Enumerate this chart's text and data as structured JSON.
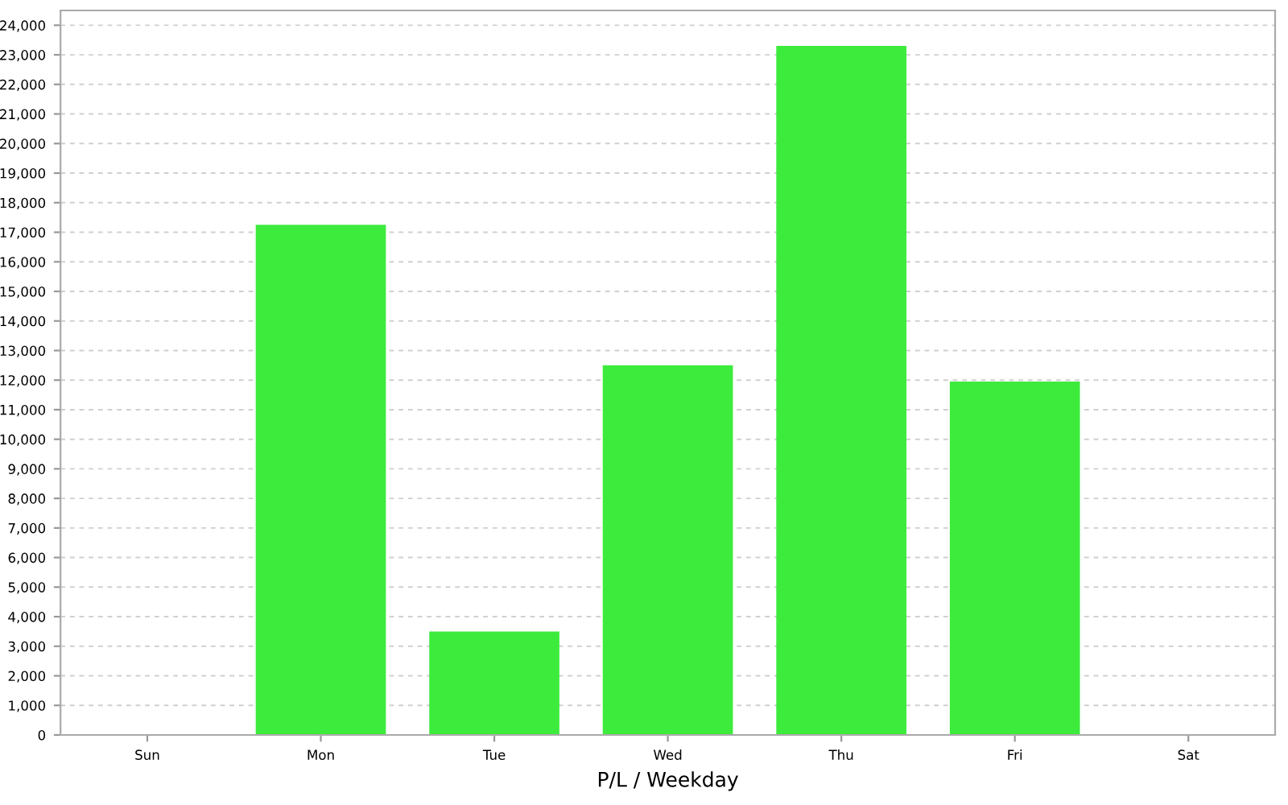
{
  "chart_data": {
    "type": "bar",
    "xlabel": "P/L / Weekday",
    "categories": [
      "Sun",
      "Mon",
      "Tue",
      "Wed",
      "Thu",
      "Fri",
      "Sat"
    ],
    "values": [
      0,
      17250,
      3500,
      12500,
      23300,
      11950,
      0
    ],
    "color": "#3deb3d",
    "ylim": [
      0,
      24500
    ],
    "yticks": [
      0,
      {
        "value": 1000,
        "label": "1,000"
      },
      {
        "value": 2000,
        "label": "2,000"
      },
      {
        "value": 3000,
        "label": "3,000"
      },
      {
        "value": 4000,
        "label": "4,000"
      },
      {
        "value": 5000,
        "label": "5,000"
      },
      {
        "value": 6000,
        "label": "6,000"
      },
      {
        "value": 7000,
        "label": "7,000"
      },
      {
        "value": 8000,
        "label": "8,000"
      },
      {
        "value": 9000,
        "label": "9,000"
      },
      {
        "value": 10000,
        "label": "10,000"
      },
      {
        "value": 11000,
        "label": "11,000"
      },
      {
        "value": 12000,
        "label": "12,000"
      },
      {
        "value": 13000,
        "label": "13,000"
      },
      {
        "value": 14000,
        "label": "14,000"
      },
      {
        "value": 15000,
        "label": "15,000"
      },
      {
        "value": 16000,
        "label": "16,000"
      },
      {
        "value": 17000,
        "label": "17,000"
      },
      {
        "value": 18000,
        "label": "18,000"
      },
      {
        "value": 19000,
        "label": "19,000"
      },
      {
        "value": 20000,
        "label": "20,000"
      },
      {
        "value": 21000,
        "label": "21,000"
      },
      {
        "value": 22000,
        "label": "22,000"
      },
      {
        "value": 23000,
        "label": "23,000"
      },
      {
        "value": 24000,
        "label": "24,000"
      }
    ],
    "grid": "y",
    "legend": false
  }
}
